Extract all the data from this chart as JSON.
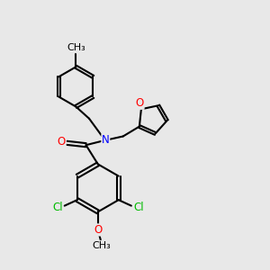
{
  "bg_color": "#e8e8e8",
  "bond_color": "#000000",
  "bond_width": 1.5,
  "atom_colors": {
    "N": "#0000ff",
    "O": "#ff0000",
    "Cl": "#00bb00",
    "C": "#000000"
  },
  "font_size": 8.5,
  "fig_size": [
    3.0,
    3.0
  ],
  "dpi": 100
}
